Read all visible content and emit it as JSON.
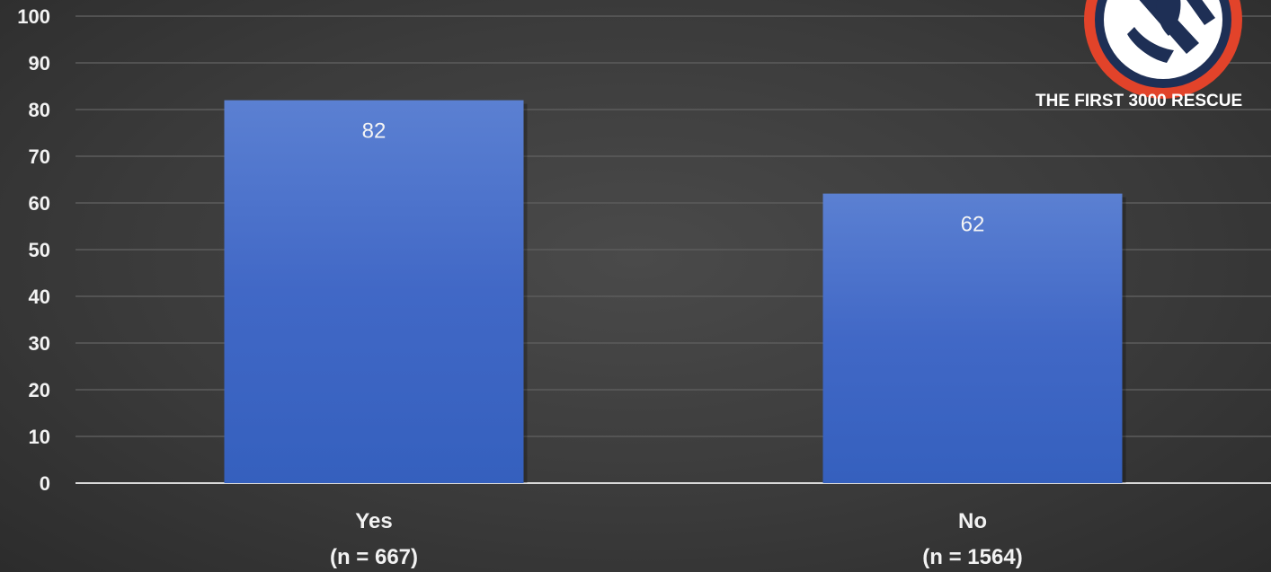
{
  "chart_data": {
    "type": "bar",
    "categories": [
      "Yes",
      "No"
    ],
    "category_sublabels": [
      "(n = 667)",
      "(n = 1564)"
    ],
    "values": [
      82,
      62
    ],
    "data_labels": [
      "82",
      "62"
    ],
    "ylim": [
      0,
      100
    ],
    "yticks": [
      0,
      10,
      20,
      30,
      40,
      50,
      60,
      70,
      80,
      90,
      100
    ],
    "grid": true,
    "bar_color": "#4472c4",
    "title": "",
    "xlabel": "",
    "ylabel": ""
  },
  "logo": {
    "text": "THE FIRST 3000 RESCUE",
    "ring_color": "#e2432a",
    "icon": "rescue-badge-icon"
  }
}
